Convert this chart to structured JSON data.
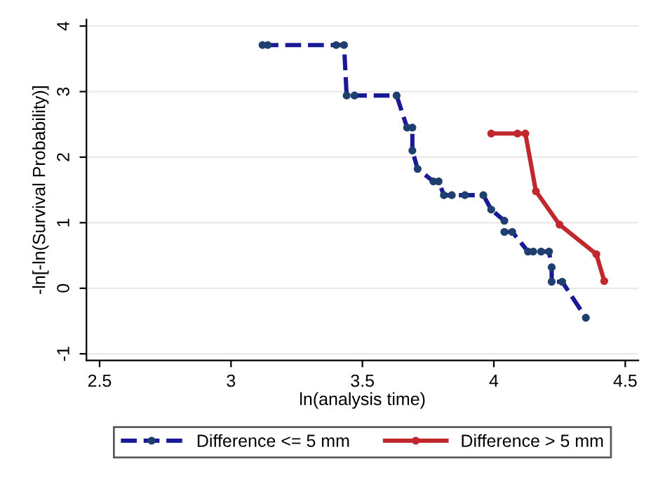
{
  "chart_data": {
    "type": "line",
    "xlabel": "ln(analysis time)",
    "ylabel": "-ln[-ln(Survival Probability)]",
    "xlim": [
      2.45,
      4.55
    ],
    "ylim": [
      -1.1,
      4.1
    ],
    "xticks": [
      2.5,
      3,
      3.5,
      4,
      4.5
    ],
    "yticks": [
      -1,
      0,
      1,
      2,
      3,
      4
    ],
    "grid": "y",
    "legend": "bottom",
    "marker": "circle",
    "series": [
      {
        "name": "Difference <= 5 mm",
        "color": "#1a1a99",
        "line_style": "dashed",
        "x": [
          3.12,
          3.14,
          3.4,
          3.43,
          3.44,
          3.47,
          3.63,
          3.67,
          3.69,
          3.69,
          3.71,
          3.77,
          3.79,
          3.81,
          3.84,
          3.89,
          3.96,
          3.99,
          4.04,
          4.04,
          4.07,
          4.13,
          4.15,
          4.18,
          4.21,
          4.22,
          4.22,
          4.26,
          4.35
        ],
        "values": [
          3.71,
          3.71,
          3.71,
          3.71,
          2.94,
          2.94,
          2.94,
          2.45,
          2.45,
          2.1,
          1.82,
          1.63,
          1.63,
          1.42,
          1.42,
          1.42,
          1.42,
          1.2,
          1.03,
          0.86,
          0.86,
          0.56,
          0.56,
          0.56,
          0.56,
          0.32,
          0.1,
          0.1,
          -0.45
        ]
      },
      {
        "name": "Difference > 5 mm",
        "color": "#c0282d",
        "line_style": "solid",
        "x": [
          3.99,
          4.09,
          4.12,
          4.16,
          4.25,
          4.39,
          4.42
        ],
        "values": [
          2.36,
          2.36,
          2.36,
          1.48,
          0.97,
          0.52,
          0.11
        ]
      }
    ]
  }
}
